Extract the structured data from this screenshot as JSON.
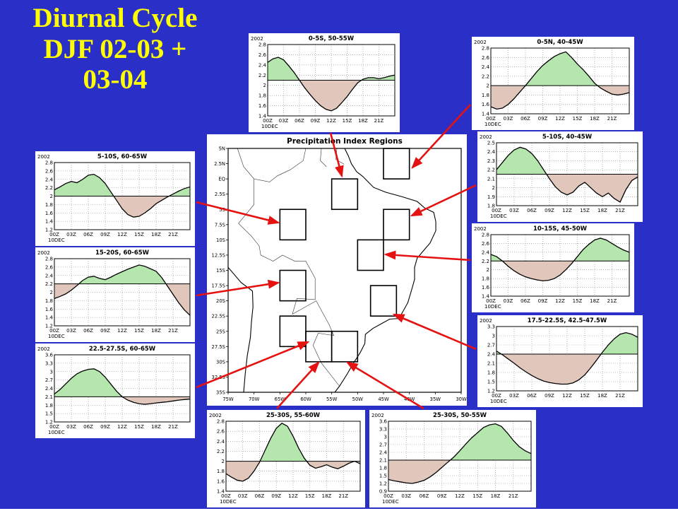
{
  "slide": {
    "title_lines": [
      "Diurnal Cycle",
      "DJF 02-03 +",
      "03-04"
    ],
    "background_color": "#2a2fc8",
    "title_color": "#ffff00",
    "arrow_color": "#e51212",
    "fill_above_color": "#b5e6ad",
    "fill_below_color": "#e0c6bb"
  },
  "map": {
    "title": "Precipitation Index Regions",
    "lat_tick_labels": [
      "5N",
      "2.5N",
      "EQ",
      "2.5S",
      "5S",
      "7.5S",
      "10S",
      "12.5S",
      "15S",
      "17.5S",
      "20S",
      "22.5S",
      "25S",
      "27.5S",
      "30S",
      "32.5S",
      "35S"
    ],
    "lat_tick_values": [
      -5,
      -2.5,
      0,
      2.5,
      5,
      7.5,
      10,
      12.5,
      15,
      17.5,
      20,
      22.5,
      25,
      27.5,
      30,
      32.5,
      35
    ],
    "lon_tick_labels": [
      "75W",
      "70W",
      "65W",
      "60W",
      "55W",
      "50W",
      "45W",
      "40W",
      "35W",
      "30W"
    ],
    "lon_tick_values": [
      75,
      70,
      65,
      60,
      55,
      50,
      45,
      40,
      35,
      30
    ],
    "lon_range": [
      75,
      30
    ],
    "lat_range": [
      -5,
      35
    ],
    "regions": [
      {
        "label": "0-5S, 50-55W",
        "west": 55,
        "east": 50,
        "north": 0,
        "south": 5
      },
      {
        "label": "0-5N, 40-45W",
        "west": 45,
        "east": 40,
        "north": -5,
        "south": 0
      },
      {
        "label": "5-10S, 40-45W",
        "west": 45,
        "east": 40,
        "north": 5,
        "south": 10
      },
      {
        "label": "10-15S, 45-50W",
        "west": 50,
        "east": 45,
        "north": 10,
        "south": 15
      },
      {
        "label": "17.5-22.5S, 42.5-47.5W",
        "west": 47.5,
        "east": 42.5,
        "north": 17.5,
        "south": 22.5
      },
      {
        "label": "5-10S, 60-65W",
        "west": 65,
        "east": 60,
        "north": 5,
        "south": 10
      },
      {
        "label": "15-20S, 60-65W",
        "west": 65,
        "east": 60,
        "north": 15,
        "south": 20
      },
      {
        "label": "22.5-27.5S, 60-65W",
        "west": 65,
        "east": 60,
        "north": 22.5,
        "south": 27.5
      },
      {
        "label": "25-30S, 55-60W",
        "west": 60,
        "east": 55,
        "north": 25,
        "south": 30
      },
      {
        "label": "25-30S, 50-55W",
        "west": 55,
        "east": 50,
        "north": 25,
        "south": 30
      }
    ]
  },
  "chart_data": [
    {
      "type": "line",
      "title": "0-5S, 50-55W",
      "year_label": "2002",
      "date_label": "10DEC",
      "xtick_labels": [
        "00Z",
        "03Z",
        "06Z",
        "09Z",
        "12Z",
        "15Z",
        "18Z",
        "21Z"
      ],
      "x_start": 0,
      "x_end": 24,
      "x_interval_hours": 1,
      "ylim": [
        1.4,
        2.8
      ],
      "yticks": [
        1.4,
        1.6,
        1.8,
        2.0,
        2.2,
        2.4,
        2.6,
        2.8
      ],
      "mean_line": 2.1,
      "values": [
        2.45,
        2.52,
        2.55,
        2.5,
        2.38,
        2.25,
        2.1,
        1.95,
        1.82,
        1.7,
        1.6,
        1.53,
        1.5,
        1.55,
        1.66,
        1.78,
        1.92,
        2.05,
        2.12,
        2.15,
        2.15,
        2.13,
        2.15,
        2.18,
        2.2
      ]
    },
    {
      "type": "line",
      "title": "0-5N, 40-45W",
      "year_label": "2002",
      "date_label": "10DEC",
      "xtick_labels": [
        "00Z",
        "03Z",
        "06Z",
        "09Z",
        "12Z",
        "15Z",
        "18Z",
        "21Z"
      ],
      "x_start": 0,
      "x_end": 24,
      "x_interval_hours": 1,
      "ylim": [
        1.4,
        2.8
      ],
      "yticks": [
        1.4,
        1.6,
        1.8,
        2.0,
        2.2,
        2.4,
        2.6,
        2.8
      ],
      "mean_line": 2.0,
      "values": [
        1.55,
        1.5,
        1.52,
        1.6,
        1.72,
        1.86,
        2.0,
        2.15,
        2.3,
        2.43,
        2.53,
        2.62,
        2.68,
        2.72,
        2.6,
        2.46,
        2.34,
        2.2,
        2.05,
        1.95,
        1.88,
        1.82,
        1.8,
        1.82,
        1.85
      ]
    },
    {
      "type": "line",
      "title": "5-10S, 40-45W",
      "year_label": "2002",
      "date_label": "10DEC",
      "xtick_labels": [
        "00Z",
        "03Z",
        "06Z",
        "09Z",
        "12Z",
        "15Z",
        "18Z",
        "21Z"
      ],
      "x_start": 0,
      "x_end": 24,
      "x_interval_hours": 1,
      "ylim": [
        1.8,
        2.5
      ],
      "yticks": [
        1.8,
        1.9,
        2.0,
        2.1,
        2.2,
        2.3,
        2.4,
        2.5
      ],
      "mean_line": 2.15,
      "values": [
        2.2,
        2.28,
        2.36,
        2.42,
        2.45,
        2.43,
        2.38,
        2.3,
        2.2,
        2.1,
        2.01,
        1.95,
        1.92,
        1.95,
        2.02,
        2.06,
        2.0,
        1.94,
        1.9,
        1.94,
        1.88,
        1.84,
        1.98,
        2.08,
        2.12
      ]
    },
    {
      "type": "line",
      "title": "10-15S, 45-50W",
      "year_label": "2002",
      "date_label": "10DEC",
      "xtick_labels": [
        "00Z",
        "03Z",
        "06Z",
        "09Z",
        "12Z",
        "15Z",
        "18Z",
        "21Z"
      ],
      "x_start": 0,
      "x_end": 24,
      "x_interval_hours": 1,
      "ylim": [
        1.4,
        2.8
      ],
      "yticks": [
        1.4,
        1.6,
        1.8,
        2.0,
        2.2,
        2.4,
        2.6,
        2.8
      ],
      "mean_line": 2.2,
      "values": [
        2.35,
        2.3,
        2.2,
        2.08,
        1.98,
        1.9,
        1.84,
        1.8,
        1.77,
        1.75,
        1.76,
        1.8,
        1.88,
        2.0,
        2.14,
        2.3,
        2.46,
        2.58,
        2.68,
        2.72,
        2.68,
        2.6,
        2.52,
        2.45,
        2.4
      ]
    },
    {
      "type": "line",
      "title": "17.5-22.5S, 42.5-47.5W",
      "year_label": "2002",
      "date_label": "10DEC",
      "xtick_labels": [
        "00Z",
        "03Z",
        "06Z",
        "09Z",
        "12Z",
        "15Z",
        "18Z",
        "21Z"
      ],
      "x_start": 0,
      "x_end": 24,
      "x_interval_hours": 1,
      "ylim": [
        1.2,
        3.3
      ],
      "yticks": [
        1.2,
        1.5,
        1.8,
        2.1,
        2.4,
        2.7,
        3.0,
        3.3
      ],
      "mean_line": 2.4,
      "values": [
        2.5,
        2.38,
        2.24,
        2.1,
        1.95,
        1.82,
        1.7,
        1.6,
        1.52,
        1.47,
        1.44,
        1.42,
        1.42,
        1.46,
        1.56,
        1.72,
        1.95,
        2.2,
        2.46,
        2.7,
        2.9,
        3.05,
        3.1,
        3.05,
        2.95
      ]
    },
    {
      "type": "line",
      "title": "5-10S, 60-65W",
      "year_label": "2002",
      "date_label": "10DEC",
      "xtick_labels": [
        "00Z",
        "03Z",
        "06Z",
        "09Z",
        "12Z",
        "15Z",
        "18Z",
        "21Z"
      ],
      "x_start": 0,
      "x_end": 24,
      "x_interval_hours": 1,
      "ylim": [
        1.2,
        2.8
      ],
      "yticks": [
        1.2,
        1.4,
        1.6,
        1.8,
        2.0,
        2.2,
        2.4,
        2.6,
        2.8
      ],
      "mean_line": 2.0,
      "values": [
        2.15,
        2.22,
        2.3,
        2.35,
        2.32,
        2.4,
        2.5,
        2.52,
        2.44,
        2.3,
        2.1,
        1.9,
        1.7,
        1.56,
        1.5,
        1.52,
        1.6,
        1.7,
        1.82,
        1.9,
        1.98,
        2.05,
        2.12,
        2.18,
        2.22
      ]
    },
    {
      "type": "line",
      "title": "15-20S, 60-65W",
      "year_label": "2002",
      "date_label": "10DEC",
      "xtick_labels": [
        "00Z",
        "03Z",
        "06Z",
        "09Z",
        "12Z",
        "15Z",
        "18Z",
        "21Z"
      ],
      "x_start": 0,
      "x_end": 24,
      "x_interval_hours": 1,
      "ylim": [
        1.2,
        2.8
      ],
      "yticks": [
        1.2,
        1.4,
        1.6,
        1.8,
        2.0,
        2.2,
        2.4,
        2.6,
        2.8
      ],
      "mean_line": 2.2,
      "values": [
        1.85,
        1.9,
        1.96,
        2.05,
        2.16,
        2.28,
        2.36,
        2.38,
        2.33,
        2.3,
        2.36,
        2.43,
        2.49,
        2.55,
        2.6,
        2.65,
        2.62,
        2.56,
        2.5,
        2.35,
        2.15,
        1.95,
        1.75,
        1.58,
        1.45
      ]
    },
    {
      "type": "line",
      "title": "22.5-27.5S, 60-65W",
      "year_label": "2002",
      "date_label": "10DEC",
      "xtick_labels": [
        "00Z",
        "03Z",
        "06Z",
        "09Z",
        "12Z",
        "15Z",
        "18Z",
        "21Z"
      ],
      "x_start": 0,
      "x_end": 24,
      "x_interval_hours": 1,
      "ylim": [
        1.2,
        3.6
      ],
      "yticks": [
        1.2,
        1.5,
        1.8,
        2.1,
        2.4,
        2.7,
        3.0,
        3.3,
        3.6
      ],
      "mean_line": 2.1,
      "values": [
        2.2,
        2.36,
        2.56,
        2.76,
        2.92,
        3.02,
        3.08,
        3.1,
        3.0,
        2.8,
        2.55,
        2.3,
        2.1,
        1.98,
        1.9,
        1.85,
        1.83,
        1.85,
        1.88,
        1.9,
        1.92,
        1.95,
        1.98,
        2.0,
        2.02
      ]
    },
    {
      "type": "line",
      "title": "25-30S, 55-60W",
      "year_label": "2002",
      "date_label": "10DEC",
      "xtick_labels": [
        "00Z",
        "03Z",
        "06Z",
        "09Z",
        "12Z",
        "15Z",
        "18Z",
        "21Z"
      ],
      "x_start": 0,
      "x_end": 24,
      "x_interval_hours": 1,
      "ylim": [
        1.4,
        2.8
      ],
      "yticks": [
        1.4,
        1.6,
        1.8,
        2.0,
        2.2,
        2.4,
        2.6,
        2.8
      ],
      "mean_line": 2.0,
      "values": [
        1.75,
        1.68,
        1.62,
        1.6,
        1.66,
        1.8,
        1.98,
        2.22,
        2.46,
        2.66,
        2.76,
        2.7,
        2.5,
        2.26,
        2.06,
        1.92,
        1.86,
        1.89,
        1.93,
        1.88,
        1.85,
        1.9,
        1.96,
        2.0,
        1.95
      ]
    },
    {
      "type": "line",
      "title": "25-30S, 50-55W",
      "year_label": "2002",
      "date_label": "10DEC",
      "xtick_labels": [
        "00Z",
        "03Z",
        "06Z",
        "09Z",
        "12Z",
        "15Z",
        "18Z",
        "21Z"
      ],
      "x_start": 0,
      "x_end": 24,
      "x_interval_hours": 1,
      "ylim": [
        0.9,
        3.6
      ],
      "yticks": [
        0.9,
        1.2,
        1.5,
        1.8,
        2.1,
        2.4,
        2.7,
        3.0,
        3.3,
        3.6
      ],
      "mean_line": 2.1,
      "values": [
        1.35,
        1.3,
        1.26,
        1.22,
        1.2,
        1.25,
        1.32,
        1.45,
        1.62,
        1.82,
        2.02,
        2.22,
        2.46,
        2.72,
        2.96,
        3.16,
        3.36,
        3.46,
        3.5,
        3.4,
        3.15,
        2.86,
        2.62,
        2.46,
        2.35
      ]
    }
  ]
}
